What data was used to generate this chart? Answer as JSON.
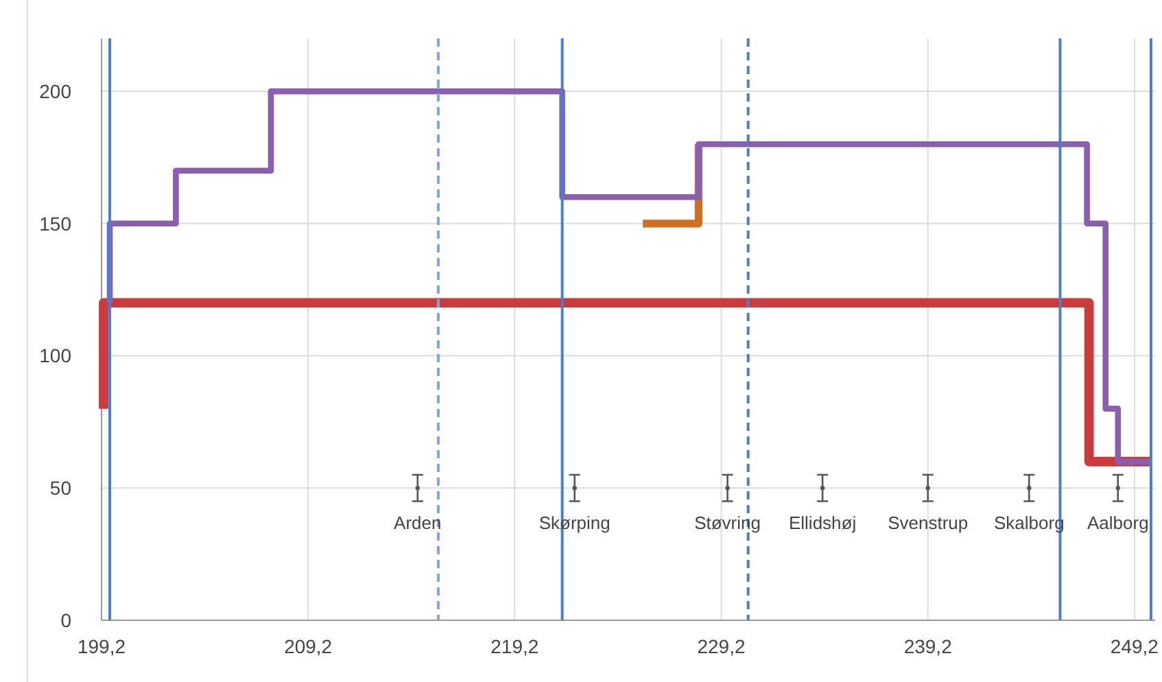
{
  "chart_data": {
    "type": "step",
    "xlim": [
      199.2,
      250.2
    ],
    "ylim": [
      0,
      220
    ],
    "xticks": [
      {
        "value": 199.2,
        "label": "199,2"
      },
      {
        "value": 209.2,
        "label": "209,2"
      },
      {
        "value": 219.2,
        "label": "219,2"
      },
      {
        "value": 229.2,
        "label": "229,2"
      },
      {
        "value": 239.2,
        "label": "239,2"
      },
      {
        "value": 249.2,
        "label": "249,2"
      }
    ],
    "yticks": [
      0,
      50,
      100,
      150,
      200
    ],
    "grid": true,
    "marker": "none",
    "line_style": "solid",
    "series": [
      {
        "color": "#cc3b3b",
        "x": [
          199.3,
          199.3,
          247.0,
          250
        ],
        "values": [
          80,
          120,
          60,
          60
        ]
      },
      {
        "color": "#d0701f",
        "x": [
          225.4,
          228.1
        ],
        "values": [
          150,
          180
        ]
      },
      {
        "color": "#8a5fb0",
        "x": [
          199.6,
          199.6,
          202.8,
          207.4,
          221.5,
          228.1,
          246.9,
          247.8,
          248.4,
          250
        ],
        "values": [
          120,
          150,
          170,
          200,
          160,
          180,
          150,
          80,
          60,
          60
        ]
      },
      {
        "type": "scatter",
        "color": "#555555",
        "marker": "circle",
        "x": [
          214.5,
          222.1,
          229.5,
          234.1,
          239.2,
          244.1,
          248.4
        ],
        "values": [
          50,
          50,
          50,
          50,
          50,
          50,
          50
        ],
        "errors": [
          5,
          5,
          5,
          5,
          5,
          5,
          5
        ]
      }
    ],
    "ref_lines": [
      {
        "axis": "x",
        "value": 199.6,
        "color": "#4a7fcc",
        "line_style": "solid"
      },
      {
        "axis": "x",
        "value": 215.5,
        "color": "#7ea6e0",
        "line_style": "dashed"
      },
      {
        "axis": "x",
        "value": 221.5,
        "color": "#4a7fcc",
        "line_style": "solid"
      },
      {
        "axis": "x",
        "value": 230.5,
        "color": "#4a7fcc",
        "line_style": "dashed"
      },
      {
        "axis": "x",
        "value": 245.6,
        "color": "#4a7fcc",
        "line_style": "solid"
      },
      {
        "axis": "x",
        "value": 250.0,
        "color": "#4a7fcc",
        "line_style": "solid"
      }
    ],
    "annotations": [
      {
        "text": "Arden",
        "x": 214.5,
        "y": 50
      },
      {
        "text": "Skørping",
        "x": 222.1,
        "y": 50
      },
      {
        "text": "Støvring",
        "x": 229.5,
        "y": 50
      },
      {
        "text": "Ellidshøj",
        "x": 234.1,
        "y": 50
      },
      {
        "text": "Svenstrup",
        "x": 239.2,
        "y": 50
      },
      {
        "text": "Skalborg",
        "x": 244.1,
        "y": 50
      },
      {
        "text": "Aalborg",
        "x": 248.4,
        "y": 50
      }
    ]
  }
}
